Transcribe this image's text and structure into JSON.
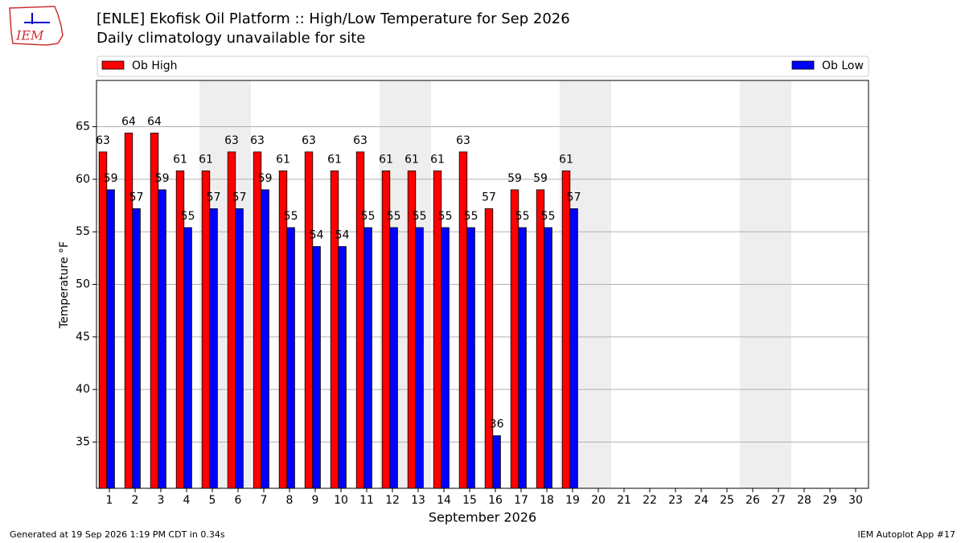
{
  "logo": "IEM",
  "chart_data": {
    "type": "bar",
    "title": "[ENLE] Ekofisk Oil Platform :: High/Low Temperature for Sep 2026",
    "subtitle": "Daily climatology unavailable for site",
    "x_label": "September 2026",
    "y_label": "Temperature °F",
    "x": [
      1,
      2,
      3,
      4,
      5,
      6,
      7,
      8,
      9,
      10,
      11,
      12,
      13,
      14,
      15,
      16,
      17,
      18,
      19,
      20,
      21,
      22,
      23,
      24,
      25,
      26,
      27,
      28,
      29,
      30
    ],
    "xlim": [
      0.5,
      30.5
    ],
    "xticks": [
      1,
      2,
      3,
      4,
      5,
      6,
      7,
      8,
      9,
      10,
      11,
      12,
      13,
      14,
      15,
      16,
      17,
      18,
      19,
      20,
      21,
      22,
      23,
      24,
      25,
      26,
      27,
      28,
      29,
      30
    ],
    "ylim": [
      30.6,
      69.4
    ],
    "yticks": [
      35,
      40,
      45,
      50,
      55,
      60,
      65
    ],
    "grid": true,
    "shaded_days": [
      5,
      6,
      12,
      13,
      19,
      20,
      26,
      27
    ],
    "shade_color": "#eeeeee",
    "series": [
      {
        "name": "Ob High",
        "color": "#ff0000",
        "values": [
          62.6,
          64.4,
          64.4,
          60.8,
          60.8,
          62.6,
          62.6,
          60.8,
          62.6,
          60.8,
          62.6,
          60.8,
          60.8,
          60.8,
          62.6,
          57.2,
          59,
          59,
          60.8,
          null,
          null,
          null,
          null,
          null,
          null,
          null,
          null,
          null,
          null,
          null
        ],
        "value_labels": [
          "63",
          "64",
          "64",
          "61",
          "61",
          "63",
          "63",
          "61",
          "63",
          "61",
          "63",
          "61",
          "61",
          "61",
          "63",
          "57",
          "59",
          "59",
          "61",
          null,
          null,
          null,
          null,
          null,
          null,
          null,
          null,
          null,
          null,
          null
        ]
      },
      {
        "name": "Ob Low",
        "color": "#0000ff",
        "values": [
          59,
          57.2,
          59,
          55.4,
          57.2,
          57.2,
          59,
          55.4,
          53.6,
          53.6,
          55.4,
          55.4,
          55.4,
          55.4,
          55.4,
          35.6,
          55.4,
          55.4,
          57.2,
          null,
          null,
          null,
          null,
          null,
          null,
          null,
          null,
          null,
          null,
          null
        ],
        "value_labels": [
          "59",
          "57",
          "59",
          "55",
          "57",
          "57",
          "59",
          "55",
          "54",
          "54",
          "55",
          "55",
          "55",
          "55",
          "55",
          "36",
          "55",
          "55",
          "57",
          null,
          null,
          null,
          null,
          null,
          null,
          null,
          null,
          null,
          null,
          null
        ]
      }
    ],
    "footer_left": "Generated at 19 Sep 2026 1:19 PM CDT in 0.34s",
    "footer_right": "IEM Autoplot App #17"
  }
}
